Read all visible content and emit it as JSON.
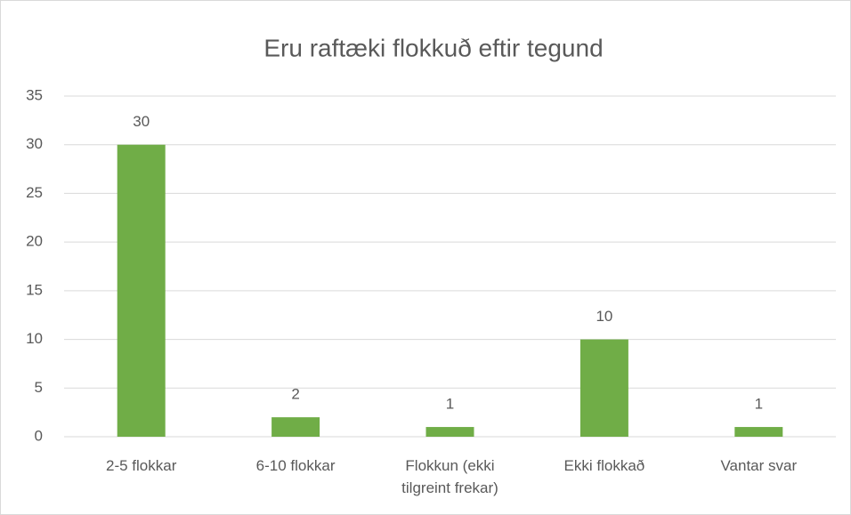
{
  "chart_data": {
    "type": "bar",
    "title": "Eru raftæki flokkuð eftir tegund",
    "categories": [
      "2-5 flokkar",
      "6-10 flokkar",
      "Flokkun (ekki tilgreint frekar)",
      "Ekki flokkað",
      "Vantar svar"
    ],
    "values": [
      30,
      2,
      1,
      10,
      1
    ],
    "color": "#70ad47",
    "ylim": [
      0,
      35
    ],
    "yticks": [
      0,
      5,
      10,
      15,
      20,
      25,
      30,
      35
    ],
    "grid": true
  }
}
